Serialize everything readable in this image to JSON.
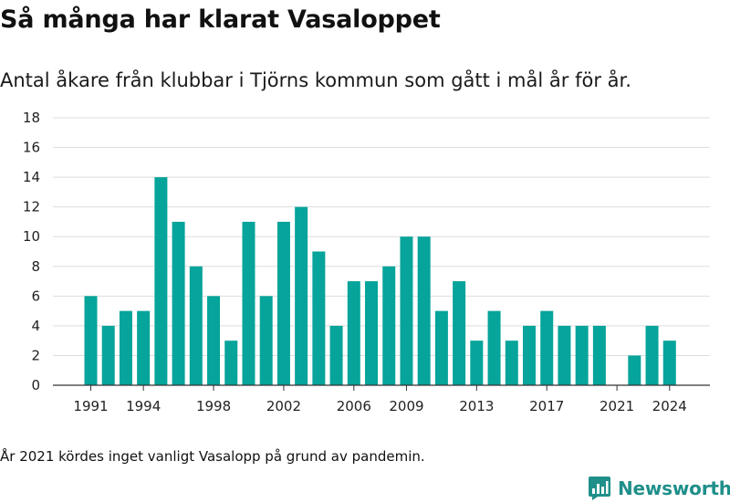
{
  "title": "Så många har klarat Vasaloppet",
  "subtitle": "Antal åkare från klubbar i Tjörns kommun som gått i mål år för år.",
  "note": "År 2021 kördes inget vanligt Vasalopp på grund av pandemin.",
  "brand": {
    "name": "Newsworthy",
    "icon": "bar-chart-speech-bubble-icon",
    "color": "#1f8f8a"
  },
  "chart_data": {
    "type": "bar",
    "x": [
      1991,
      1992,
      1993,
      1994,
      1995,
      1996,
      1997,
      1998,
      1999,
      2000,
      2001,
      2002,
      2003,
      2004,
      2005,
      2006,
      2007,
      2008,
      2009,
      2010,
      2011,
      2012,
      2013,
      2014,
      2015,
      2016,
      2017,
      2018,
      2019,
      2020,
      2021,
      2022,
      2023,
      2024
    ],
    "values": [
      6,
      4,
      5,
      5,
      14,
      11,
      8,
      6,
      3,
      11,
      6,
      11,
      12,
      9,
      4,
      7,
      7,
      8,
      10,
      10,
      5,
      7,
      3,
      5,
      3,
      4,
      5,
      4,
      4,
      4,
      0,
      2,
      4,
      3
    ],
    "x_tick_labels": [
      1991,
      1994,
      1998,
      2002,
      2006,
      2009,
      2013,
      2017,
      2021,
      2024
    ],
    "y_ticks": [
      0,
      2,
      4,
      6,
      8,
      10,
      12,
      14,
      16,
      18
    ],
    "ylim": [
      0,
      18
    ],
    "xlabel": "",
    "ylabel": "",
    "bar_color": "#06a49a",
    "grid": "horizontal"
  }
}
